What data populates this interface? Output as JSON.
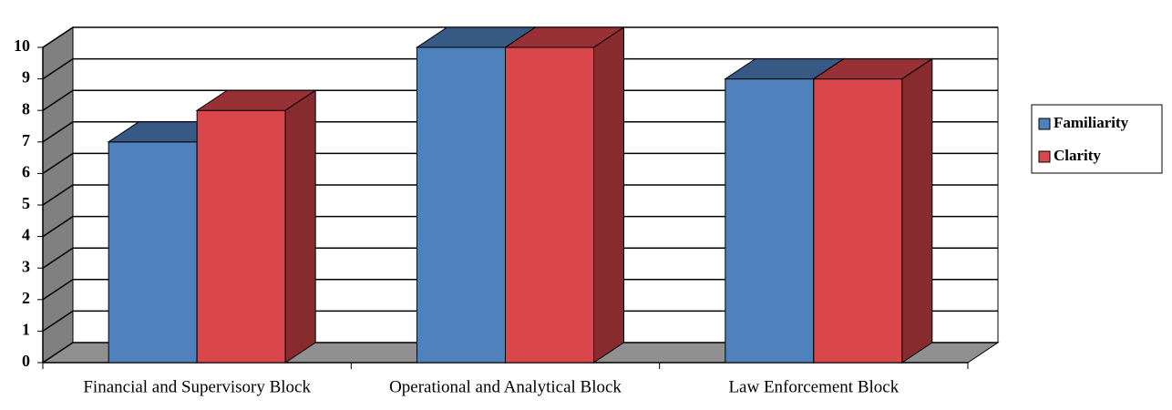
{
  "chart_data": {
    "type": "bar3d",
    "categories": [
      "Financial and Supervisory Block",
      "Operational and Analytical Block",
      "Law Enforcement Block"
    ],
    "series": [
      {
        "name": "Familiarity",
        "color": "#4f81bd",
        "values": [
          7,
          10,
          9
        ]
      },
      {
        "name": "Clarity",
        "color": "#d9464b",
        "values": [
          8,
          10,
          9
        ]
      }
    ],
    "ylim": [
      0,
      10
    ],
    "yticks": [
      0,
      1,
      2,
      3,
      4,
      5,
      6,
      7,
      8,
      9,
      10
    ],
    "grid": true,
    "legend": "right"
  }
}
